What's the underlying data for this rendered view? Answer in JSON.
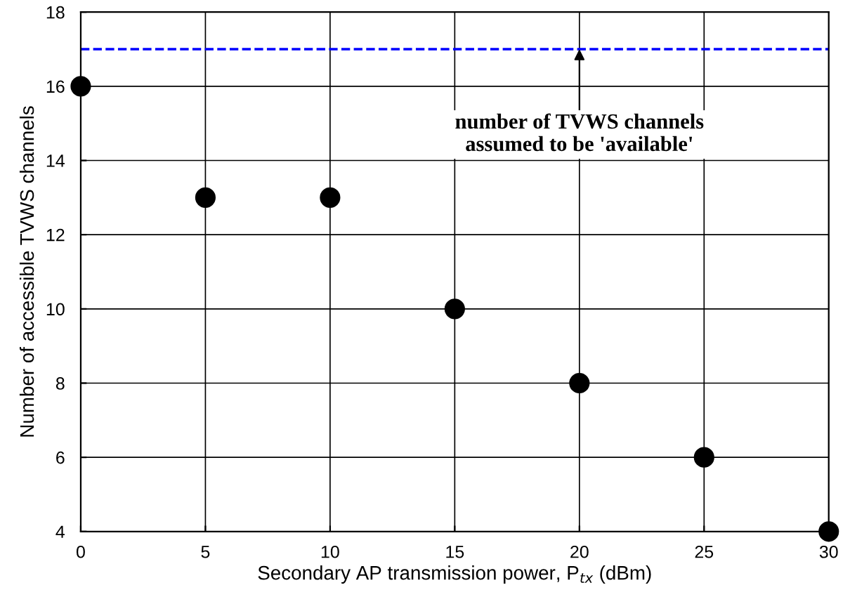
{
  "chart_data": {
    "type": "scatter",
    "xlabel": "Secondary AP transmission power, P$_{tx}$ (dBm)",
    "ylabel": "Number of accessible TVWS channels",
    "x": [
      0,
      5,
      10,
      15,
      20,
      25,
      30
    ],
    "series": [
      {
        "color": "#000000",
        "values": [
          16,
          13,
          13,
          10,
          8,
          6,
          4
        ]
      }
    ],
    "marker": "circle",
    "xlim": [
      0,
      30
    ],
    "ylim": [
      4,
      18
    ],
    "xticks": [
      0,
      5,
      10,
      15,
      20,
      25,
      30
    ],
    "yticks": [
      4,
      6,
      8,
      10,
      12,
      14,
      16,
      18
    ],
    "grid": true,
    "ref_lines": [
      {
        "axis": "y",
        "value": 17,
        "color": "#0000ff",
        "line_style": "dashed"
      }
    ],
    "annotations": [
      {
        "text": "number of TVWS channels\nassumed to be 'available'",
        "x": 20,
        "y": 17
      }
    ]
  }
}
